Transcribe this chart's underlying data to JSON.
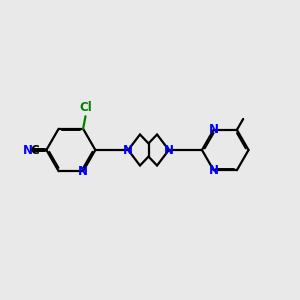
{
  "bg_color": "#e9e9e9",
  "bond_color": "#000000",
  "n_color": "#0000ff",
  "cl_color": "#008000",
  "lw": 1.6,
  "fs": 8.5,
  "dbo": 0.055,
  "xlim": [
    0.2,
    10.2
  ],
  "ylim": [
    3.2,
    6.8
  ]
}
